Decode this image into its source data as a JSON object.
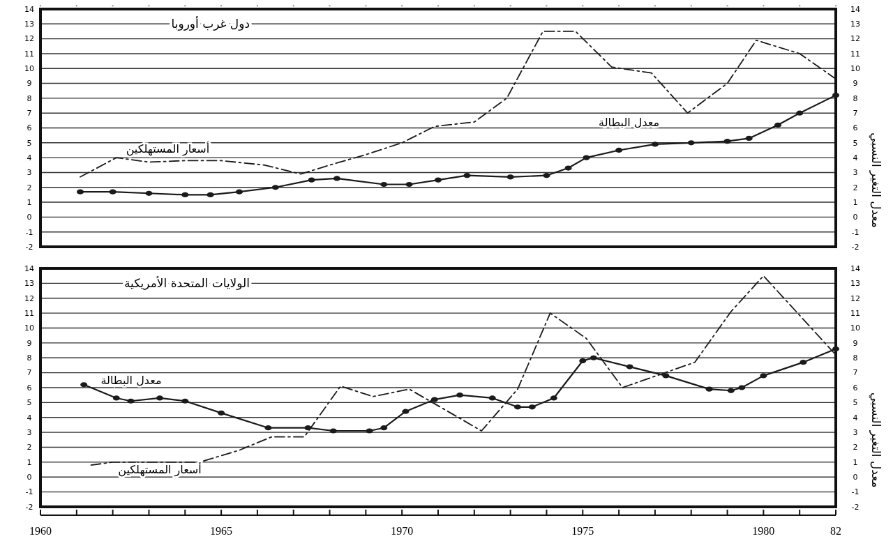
{
  "chart_data": [
    {
      "type": "line",
      "title": "دول غرب أوروبا",
      "y2label": "معدل التغير النسبي",
      "xlim": [
        1960,
        1982
      ],
      "xticks": [
        {
          "value": 1960,
          "label": null
        },
        {
          "value": 1961,
          "label": null
        },
        {
          "value": 1962,
          "label": null
        },
        {
          "value": 1963,
          "label": null
        },
        {
          "value": 1964,
          "label": null
        },
        {
          "value": 1965,
          "label": null
        },
        {
          "value": 1966,
          "label": null
        },
        {
          "value": 1967,
          "label": null
        },
        {
          "value": 1968,
          "label": null
        },
        {
          "value": 1969,
          "label": null
        },
        {
          "value": 1970,
          "label": null
        },
        {
          "value": 1971,
          "label": null
        },
        {
          "value": 1972,
          "label": null
        },
        {
          "value": 1973,
          "label": null
        },
        {
          "value": 1974,
          "label": null
        },
        {
          "value": 1975,
          "label": null
        },
        {
          "value": 1976,
          "label": null
        },
        {
          "value": 1977,
          "label": null
        },
        {
          "value": 1978,
          "label": null
        },
        {
          "value": 1979,
          "label": null
        },
        {
          "value": 1980,
          "label": null
        },
        {
          "value": 1981,
          "label": null
        },
        {
          "value": 1982,
          "label": null
        }
      ],
      "ylim": [
        -2,
        14
      ],
      "yticks": [
        -2,
        -1,
        0,
        1,
        2,
        3,
        4,
        5,
        6,
        7,
        8,
        9,
        10,
        11,
        12,
        13,
        14
      ],
      "y2lim": [
        -2,
        14
      ],
      "y2ticks": [
        -2,
        -1,
        0,
        1,
        2,
        3,
        4,
        5,
        6,
        7,
        8,
        9,
        10,
        11,
        12,
        13,
        14
      ],
      "grid": "y",
      "tick_labels": "y",
      "series": [
        {
          "name": "أسعار المستهلكين",
          "color": "#1a1a1a",
          "line_style": "dashed",
          "marker": "none",
          "x": [
            1961.1,
            1962.1,
            1963,
            1964,
            1965,
            1966.2,
            1967.2,
            1968,
            1969,
            1970,
            1970.9,
            1972,
            1972.9,
            1973.9,
            1974.8,
            1975.8,
            1976.9,
            1977.9,
            1979,
            1979.8,
            1981,
            1982
          ],
          "values": [
            2.7,
            4.0,
            3.7,
            3.8,
            3.8,
            3.5,
            2.9,
            3.5,
            4.2,
            5.0,
            6.1,
            6.4,
            8.0,
            12.5,
            12.5,
            10.1,
            9.7,
            7.0,
            9.0,
            11.9,
            11.0,
            9.3
          ]
        },
        {
          "name": "معدل البطالة",
          "color": "#1a1a1a",
          "line_style": "solid",
          "marker": "circle",
          "x": [
            1961.1,
            1962,
            1963,
            1964,
            1964.7,
            1965.5,
            1966.5,
            1967.5,
            1968.2,
            1969.5,
            1970.2,
            1971,
            1971.8,
            1973,
            1974,
            1974.6,
            1975.1,
            1976,
            1977,
            1978,
            1979,
            1979.6,
            1980.4,
            1981,
            1982
          ],
          "values": [
            1.7,
            1.7,
            1.6,
            1.5,
            1.5,
            1.7,
            2.0,
            2.5,
            2.6,
            2.2,
            2.2,
            2.5,
            2.8,
            2.7,
            2.8,
            3.3,
            4.0,
            4.5,
            4.9,
            5.0,
            5.1,
            5.3,
            6.2,
            7.0,
            8.2
          ]
        }
      ],
      "legend": false
    },
    {
      "type": "line",
      "title": "الولايات المتحدة الأمريكية",
      "y2label": "معدل التغير النسبي",
      "xlim": [
        1960,
        1982
      ],
      "xticks": [
        1960,
        {
          "value": 1961,
          "label": null
        },
        {
          "value": 1962,
          "label": null
        },
        {
          "value": 1963,
          "label": null
        },
        {
          "value": 1964,
          "label": null
        },
        1965,
        {
          "value": 1966,
          "label": null
        },
        {
          "value": 1967,
          "label": null
        },
        {
          "value": 1968,
          "label": null
        },
        {
          "value": 1969,
          "label": null
        },
        1970,
        {
          "value": 1971,
          "label": null
        },
        {
          "value": 1972,
          "label": null
        },
        {
          "value": 1973,
          "label": null
        },
        {
          "value": 1974,
          "label": null
        },
        1975,
        {
          "value": 1976,
          "label": null
        },
        {
          "value": 1977,
          "label": null
        },
        {
          "value": 1978,
          "label": null
        },
        {
          "value": 1979,
          "label": null
        },
        1980,
        {
          "value": 1981,
          "label": null
        },
        {
          "value": 1982,
          "label": "82"
        }
      ],
      "ylim": [
        -2,
        14
      ],
      "yticks": [
        -2,
        -1,
        0,
        1,
        2,
        3,
        4,
        5,
        6,
        7,
        8,
        9,
        10,
        11,
        12,
        13,
        14
      ],
      "y2lim": [
        -2,
        14
      ],
      "y2ticks": [
        -2,
        -1,
        0,
        1,
        2,
        3,
        4,
        5,
        6,
        7,
        8,
        9,
        10,
        11,
        12,
        13,
        14
      ],
      "grid": "y",
      "series": [
        {
          "name": "أسعار المستهلكين",
          "color": "#1a1a1a",
          "line_style": "dashed",
          "marker": "none",
          "x": [
            1961.4,
            1962,
            1964.4,
            1965.5,
            1966.4,
            1967.3,
            1968.3,
            1969.2,
            1970.2,
            1972.2,
            1973.2,
            1974.1,
            1975.1,
            1976.1,
            1978.1,
            1979.1,
            1980,
            1982
          ],
          "values": [
            0.8,
            1.0,
            1.0,
            1.8,
            2.7,
            2.7,
            6.1,
            5.4,
            5.9,
            3.1,
            5.9,
            11.0,
            9.3,
            6.0,
            7.7,
            11.1,
            13.5,
            8.2
          ]
        },
        {
          "name": "معدل البطالة",
          "color": "#1a1a1a",
          "line_style": "solid",
          "marker": "circle",
          "x": [
            1961.2,
            1962.1,
            1962.5,
            1963.3,
            1964,
            1965,
            1966.3,
            1967.4,
            1968.1,
            1969.1,
            1969.5,
            1970.1,
            1970.9,
            1971.6,
            1972.5,
            1973.2,
            1973.6,
            1974.2,
            1975,
            1975.3,
            1976.3,
            1977.3,
            1978.5,
            1979.1,
            1979.4,
            1980,
            1981.1,
            1982
          ],
          "values": [
            6.2,
            5.3,
            5.1,
            5.3,
            5.1,
            4.3,
            3.3,
            3.3,
            3.1,
            3.1,
            3.3,
            4.4,
            5.2,
            5.5,
            5.3,
            4.7,
            4.7,
            5.3,
            7.8,
            8.0,
            7.4,
            6.8,
            5.9,
            5.8,
            6.0,
            6.8,
            7.7,
            8.6
          ]
        }
      ],
      "legend": false
    }
  ]
}
